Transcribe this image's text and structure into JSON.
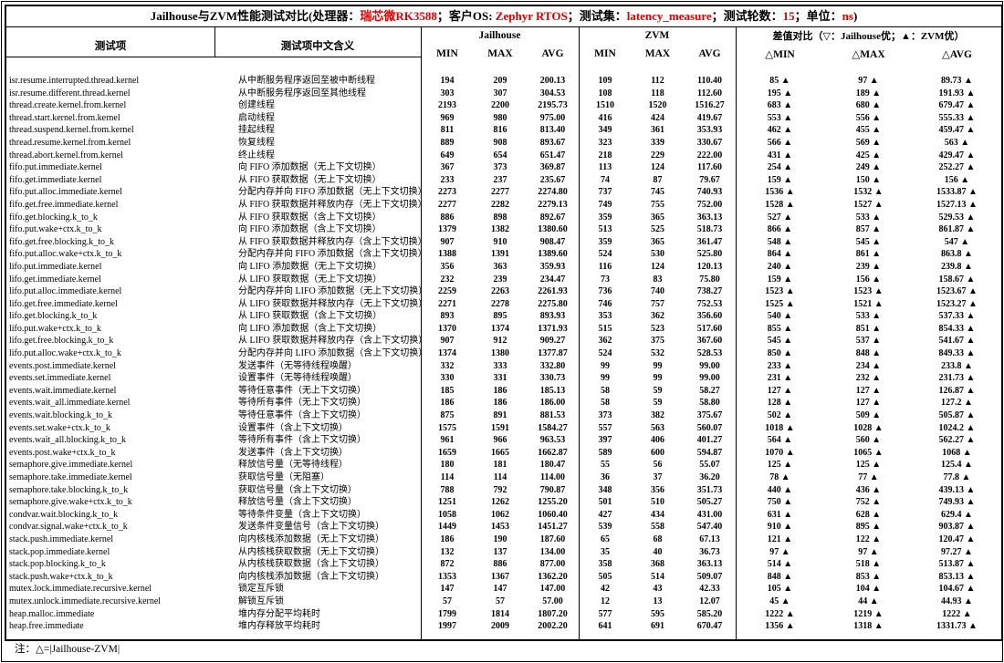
{
  "title": {
    "segments": [
      {
        "text": "Jailhouse与ZVM性能测试对比(处理器：",
        "red": false
      },
      {
        "text": "瑞芯微RK3588",
        "red": true
      },
      {
        "text": "；客户OS: ",
        "red": false
      },
      {
        "text": "Zephyr RTOS",
        "red": true
      },
      {
        "text": "；测试集：",
        "red": false
      },
      {
        "text": "latency_measure",
        "red": true
      },
      {
        "text": "；测试轮数：",
        "red": false
      },
      {
        "text": "15",
        "red": true
      },
      {
        "text": "；单位：",
        "red": false
      },
      {
        "text": "ns",
        "red": true
      },
      {
        "text": ")",
        "red": false
      }
    ]
  },
  "header": {
    "col_test": "测试项",
    "col_meaning": "测试项中文含义",
    "group_jailhouse": "Jailhouse",
    "group_zvm": "ZVM",
    "group_diff": "差值对比（▽：Jailhouse优；▲：ZVM优）",
    "sub_jailhouse": [
      "MIN",
      "MAX",
      "AVG"
    ],
    "sub_zvm": [
      "MIN",
      "MAX",
      "AVG"
    ],
    "sub_diff": [
      "△MIN",
      "△MAX",
      "△AVG"
    ]
  },
  "rows": [
    [
      "isr.resume.interrupted.thread.kernel",
      "从中断服务程序返回至被中断线程",
      "194",
      "209",
      "200.13",
      "109",
      "112",
      "110.40",
      "85 ▲",
      "97 ▲",
      "89.73 ▲"
    ],
    [
      "isr.resume.different.thread.kernel",
      "从中断服务程序返回至其他线程",
      "303",
      "307",
      "304.53",
      "108",
      "118",
      "112.60",
      "195 ▲",
      "189 ▲",
      "191.93 ▲"
    ],
    [
      "thread.create.kernel.from.kernel",
      "创建线程",
      "2193",
      "2200",
      "2195.73",
      "1510",
      "1520",
      "1516.27",
      "683 ▲",
      "680 ▲",
      "679.47 ▲"
    ],
    [
      "thread.start.kernel.from.kernel",
      "启动线程",
      "969",
      "980",
      "975.00",
      "416",
      "424",
      "419.67",
      "553 ▲",
      "556 ▲",
      "555.33 ▲"
    ],
    [
      "thread.suspend.kernel.from.kernel",
      "挂起线程",
      "811",
      "816",
      "813.40",
      "349",
      "361",
      "353.93",
      "462 ▲",
      "455 ▲",
      "459.47 ▲"
    ],
    [
      "thread.resume.kernel.from.kernel",
      "恢复线程",
      "889",
      "908",
      "893.67",
      "323",
      "339",
      "330.67",
      "566 ▲",
      "569 ▲",
      "563 ▲"
    ],
    [
      "thread.abort.kernel.from.kernel",
      "终止线程",
      "649",
      "654",
      "651.47",
      "218",
      "229",
      "222.00",
      "431 ▲",
      "425 ▲",
      "429.47 ▲"
    ],
    [
      "fifo.put.immediate.kernel",
      "向 FIFO 添加数据（无上下文切换）",
      "367",
      "373",
      "369.87",
      "113",
      "124",
      "117.60",
      "254 ▲",
      "249 ▲",
      "252.27 ▲"
    ],
    [
      "fifo.get.immediate.kernel",
      "从 FIFO 获取数据（无上下文切换）",
      "233",
      "237",
      "235.67",
      "74",
      "87",
      "79.67",
      "159 ▲",
      "150 ▲",
      "156 ▲"
    ],
    [
      "fifo.put.alloc.immediate.kernel",
      "分配内存并向 FIFO 添加数据（无上下文切换）",
      "2273",
      "2277",
      "2274.80",
      "737",
      "745",
      "740.93",
      "1536 ▲",
      "1532 ▲",
      "1533.87 ▲"
    ],
    [
      "fifo.get.free.immediate.kernel",
      "从 FIFO 获取数据并释放内存（无上下文切换）",
      "2277",
      "2282",
      "2279.13",
      "749",
      "755",
      "752.00",
      "1528 ▲",
      "1527 ▲",
      "1527.13 ▲"
    ],
    [
      "fifo.get.blocking.k_to_k",
      "从 FIFO 获取数据（含上下文切换）",
      "886",
      "898",
      "892.67",
      "359",
      "365",
      "363.13",
      "527 ▲",
      "533 ▲",
      "529.53 ▲"
    ],
    [
      "fifo.put.wake+ctx.k_to_k",
      "向 FIFO 添加数据（含上下文切换）",
      "1379",
      "1382",
      "1380.60",
      "513",
      "525",
      "518.73",
      "866 ▲",
      "857 ▲",
      "861.87 ▲"
    ],
    [
      "fifo.get.free.blocking.k_to_k",
      "从 FIFO 获取数据并释放内存（含上下文切换）",
      "907",
      "910",
      "908.47",
      "359",
      "365",
      "361.47",
      "548 ▲",
      "545 ▲",
      "547 ▲"
    ],
    [
      "fifo.put.alloc.wake+ctx.k_to_k",
      "分配内存并向 FIFO 添加数据（含上下文切换）",
      "1388",
      "1391",
      "1389.60",
      "524",
      "530",
      "525.80",
      "864 ▲",
      "861 ▲",
      "863.8 ▲"
    ],
    [
      "lifo.put.immediate.kernel",
      "向 LIFO 添加数据（无上下文切换）",
      "356",
      "363",
      "359.93",
      "116",
      "124",
      "120.13",
      "240 ▲",
      "239 ▲",
      "239.8 ▲"
    ],
    [
      "lifo.get.immediate.kernel",
      "从 LIFO 获取数据（无上下文切换）",
      "232",
      "239",
      "234.47",
      "73",
      "83",
      "75.80",
      "159 ▲",
      "156 ▲",
      "158.67 ▲"
    ],
    [
      "lifo.put.alloc.immediate.kernel",
      "分配内存并向 LIFO 添加数据（无上下文切换）",
      "2259",
      "2263",
      "2261.93",
      "736",
      "740",
      "738.27",
      "1523 ▲",
      "1523 ▲",
      "1523.67 ▲"
    ],
    [
      "lifo.get.free.immediate.kernel",
      "从 LIFO 获取数据并释放内存（无上下文切换）",
      "2271",
      "2278",
      "2275.80",
      "746",
      "757",
      "752.53",
      "1525 ▲",
      "1521 ▲",
      "1523.27 ▲"
    ],
    [
      "lifo.get.blocking.k_to_k",
      "从 LIFO 获取数据（含上下文切换）",
      "893",
      "895",
      "893.93",
      "353",
      "362",
      "356.60",
      "540 ▲",
      "533 ▲",
      "537.33 ▲"
    ],
    [
      "lifo.put.wake+ctx.k_to_k",
      "向 LIFO 添加数据（含上下文切换）",
      "1370",
      "1374",
      "1371.93",
      "515",
      "523",
      "517.60",
      "855 ▲",
      "851 ▲",
      "854.33 ▲"
    ],
    [
      "lifo.get.free.blocking.k_to_k",
      "从 LIFO 获取数据并释放内存（含上下文切换）",
      "907",
      "912",
      "909.27",
      "362",
      "375",
      "367.60",
      "545 ▲",
      "537 ▲",
      "541.67 ▲"
    ],
    [
      "lifo.put.alloc.wake+ctx.k_to_k",
      "分配内存并向 LIFO 添加数据（含上下文切换）",
      "1374",
      "1380",
      "1377.87",
      "524",
      "532",
      "528.53",
      "850 ▲",
      "848 ▲",
      "849.33 ▲"
    ],
    [
      "events.post.immediate.kernel",
      "发送事件（无等待线程唤醒）",
      "332",
      "333",
      "332.80",
      "99",
      "99",
      "99.00",
      "233 ▲",
      "234 ▲",
      "233.8 ▲"
    ],
    [
      "events.set.immediate.kernel",
      "设置事件（无等待线程唤醒）",
      "330",
      "331",
      "330.73",
      "99",
      "99",
      "99.00",
      "231 ▲",
      "232 ▲",
      "231.73 ▲"
    ],
    [
      "events.wait.immediate.kernel",
      "等待任意事件（无上下文切换）",
      "185",
      "186",
      "185.13",
      "58",
      "59",
      "58.27",
      "127 ▲",
      "127 ▲",
      "126.87 ▲"
    ],
    [
      "events.wait_all.immediate.kernel",
      "等待所有事件（无上下文切换）",
      "186",
      "186",
      "186.00",
      "58",
      "59",
      "58.80",
      "128 ▲",
      "127 ▲",
      "127.2 ▲"
    ],
    [
      "events.wait.blocking.k_to_k",
      "等待任意事件（含上下文切换）",
      "875",
      "891",
      "881.53",
      "373",
      "382",
      "375.67",
      "502 ▲",
      "509 ▲",
      "505.87 ▲"
    ],
    [
      "events.set.wake+ctx.k_to_k",
      "设置事件（含上下文切换）",
      "1575",
      "1591",
      "1584.27",
      "557",
      "563",
      "560.07",
      "1018 ▲",
      "1028 ▲",
      "1024.2 ▲"
    ],
    [
      "events.wait_all.blocking.k_to_k",
      "等待所有事件（含上下文切换）",
      "961",
      "966",
      "963.53",
      "397",
      "406",
      "401.27",
      "564 ▲",
      "560 ▲",
      "562.27 ▲"
    ],
    [
      "events.post.wake+ctx.k_to_k",
      "发送事件（含上下文切换）",
      "1659",
      "1665",
      "1662.87",
      "589",
      "600",
      "594.87",
      "1070 ▲",
      "1065 ▲",
      "1068 ▲"
    ],
    [
      "semaphore.give.immediate.kernel",
      "释放信号量（无等待线程）",
      "180",
      "181",
      "180.47",
      "55",
      "56",
      "55.07",
      "125 ▲",
      "125 ▲",
      "125.4 ▲"
    ],
    [
      "semaphore.take.immediate.kernel",
      "获取信号量（无阻塞）",
      "114",
      "114",
      "114.00",
      "36",
      "37",
      "36.20",
      "78 ▲",
      "77 ▲",
      "77.8 ▲"
    ],
    [
      "semaphore.take.blocking.k_to_k",
      "获取信号量（含上下文切换）",
      "788",
      "792",
      "790.87",
      "348",
      "356",
      "351.73",
      "440 ▲",
      "436 ▲",
      "439.13 ▲"
    ],
    [
      "semaphore.give.wake+ctx.k_to_k",
      "释放信号量（含上下文切换）",
      "1251",
      "1262",
      "1255.20",
      "501",
      "510",
      "505.27",
      "750 ▲",
      "752 ▲",
      "749.93 ▲"
    ],
    [
      "condvar.wait.blocking.k_to_k",
      "等待条件变量（含上下文切换）",
      "1058",
      "1062",
      "1060.40",
      "427",
      "434",
      "431.00",
      "631 ▲",
      "628 ▲",
      "629.4 ▲"
    ],
    [
      "condvar.signal.wake+ctx.k_to_k",
      "发送条件变量信号（含上下文切换）",
      "1449",
      "1453",
      "1451.27",
      "539",
      "558",
      "547.40",
      "910 ▲",
      "895 ▲",
      "903.87 ▲"
    ],
    [
      "stack.push.immediate.kernel",
      "向内核栈添加数据（无上下文切换）",
      "186",
      "190",
      "187.60",
      "65",
      "68",
      "67.13",
      "121 ▲",
      "122 ▲",
      "120.47 ▲"
    ],
    [
      "stack.pop.immediate.kernel",
      "从内核栈获取数据（无上下文切换）",
      "132",
      "137",
      "134.00",
      "35",
      "40",
      "36.73",
      "97 ▲",
      "97 ▲",
      "97.27 ▲"
    ],
    [
      "stack.pop.blocking.k_to_k",
      "从内核栈获取数据（含上下文切换）",
      "872",
      "886",
      "877.00",
      "358",
      "368",
      "363.13",
      "514 ▲",
      "518 ▲",
      "513.87 ▲"
    ],
    [
      "stack.push.wake+ctx.k_to_k",
      "向内核栈添加数据（含上下文切换）",
      "1353",
      "1367",
      "1362.20",
      "505",
      "514",
      "509.07",
      "848 ▲",
      "853 ▲",
      "853.13 ▲"
    ],
    [
      "mutex.lock.immediate.recursive.kernel",
      "锁定互斥锁",
      "147",
      "147",
      "147.00",
      "42",
      "43",
      "42.33",
      "105 ▲",
      "104 ▲",
      "104.67 ▲"
    ],
    [
      "mutex.unlock.immediate.recursive.kernel",
      "解锁互斥锁",
      "57",
      "57",
      "57.00",
      "12",
      "13",
      "12.07",
      "45 ▲",
      "44 ▲",
      "44.93 ▲"
    ],
    [
      "heap.malloc.immediate",
      "堆内存分配平均耗时",
      "1799",
      "1814",
      "1807.20",
      "577",
      "595",
      "585.20",
      "1222 ▲",
      "1219 ▲",
      "1222 ▲"
    ],
    [
      "heap.free.immediate",
      "堆内存释放平均耗时",
      "1997",
      "2009",
      "2002.20",
      "641",
      "691",
      "670.47",
      "1356 ▲",
      "1318 ▲",
      "1331.73 ▲"
    ]
  ],
  "note": "注：△=|Jailhouse-ZVM|",
  "colors": {
    "accent_red": "#e00000",
    "text": "#000000",
    "border": "#000000"
  }
}
